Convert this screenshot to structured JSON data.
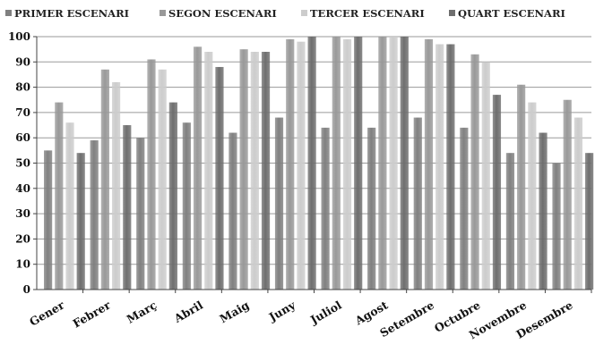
{
  "chart_data": {
    "type": "bar",
    "title": "",
    "xlabel": "",
    "ylabel": "",
    "ylim": [
      0,
      100
    ],
    "yticks": [
      0,
      10,
      20,
      30,
      40,
      50,
      60,
      70,
      80,
      90,
      100
    ],
    "grid": "horizontal",
    "legend_position": "top",
    "categories": [
      "Gener",
      "Febrer",
      "Març",
      "Abril",
      "Maig",
      "Juny",
      "Juliol",
      "Agost",
      "Setembre",
      "Octubre",
      "Novembre",
      "Desembre"
    ],
    "series": [
      {
        "name": "PRIMER ESCENARI",
        "color": "#808080",
        "values": [
          55,
          59,
          60,
          66,
          62,
          68,
          64,
          64,
          68,
          64,
          54,
          50
        ]
      },
      {
        "name": "SEGON ESCENARI",
        "color": "#999999",
        "values": [
          74,
          87,
          91,
          96,
          95,
          99,
          100,
          100,
          99,
          93,
          81,
          75
        ]
      },
      {
        "name": "TERCER ESCENARI",
        "color": "#cccccc",
        "values": [
          66,
          82,
          87,
          94,
          94,
          98,
          99,
          100,
          97,
          90,
          74,
          68
        ]
      },
      {
        "name": "QUART ESCENARI",
        "color": "#6e6e6e",
        "values": [
          54,
          65,
          74,
          88,
          94,
          100,
          100,
          100,
          97,
          77,
          62,
          54
        ]
      }
    ]
  }
}
